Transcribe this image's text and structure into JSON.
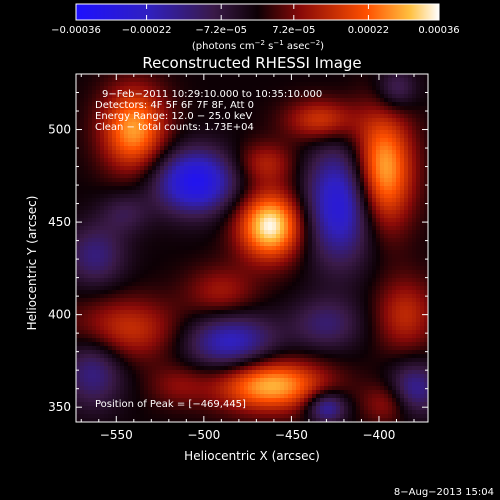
{
  "chart_data": {
    "type": "heatmap",
    "title": "Reconstructed RHESSI Image",
    "xlabel": "Heliocentric X (arcsec)",
    "ylabel": "Heliocentric Y (arcsec)",
    "xlim": [
      -573,
      -372
    ],
    "ylim": [
      342,
      530
    ],
    "xticks": [
      -550,
      -500,
      -450,
      -400
    ],
    "yticks": [
      350,
      400,
      450,
      500
    ],
    "xtick_labels": [
      "−550",
      "−500",
      "−450",
      "−400"
    ],
    "ytick_labels": [
      "350",
      "400",
      "450",
      "500"
    ],
    "colorbar": {
      "ticks": [
        -0.00036,
        -0.00022,
        -7.2e-05,
        7.2e-05,
        0.00022,
        0.00036
      ],
      "tick_labels": [
        "−0.00036",
        "−0.00022",
        "−7.2e−05",
        "7.2e−05",
        "0.00022",
        "0.00036"
      ],
      "unit_label": {
        "part1": "(photons cm",
        "exp1": "−2",
        "part2": " s",
        "exp2": "−1",
        "part3": " asec",
        "exp3": "−2",
        "part4": ")"
      },
      "range": [
        -0.00036,
        0.00036
      ]
    },
    "annotations": {
      "time_range": "9−Feb−2011 10:29:10.000 to 10:35:10.000",
      "detectors": "Detectors: 4F 5F 6F 7F 8F, Att 0",
      "energy_range": "Energy Range: 12.0 − 25.0 keV",
      "clean_counts": "Clean − total counts: 1.73E+04",
      "peak": "Position of Peak = [−469,445]"
    },
    "features": [
      {
        "x": -462,
        "y": 448,
        "sx": 13,
        "sy": 13,
        "amp": 1.0
      },
      {
        "x": -540,
        "y": 500,
        "sx": 13,
        "sy": 16,
        "amp": 0.78
      },
      {
        "x": -398,
        "y": 478,
        "sx": 12,
        "sy": 22,
        "amp": 0.88
      },
      {
        "x": -462,
        "y": 362,
        "sx": 22,
        "sy": 10,
        "amp": 0.85
      },
      {
        "x": -433,
        "y": 505,
        "sx": 14,
        "sy": 8,
        "amp": 0.5
      },
      {
        "x": -545,
        "y": 392,
        "sx": 22,
        "sy": 12,
        "amp": 0.45
      },
      {
        "x": -490,
        "y": 412,
        "sx": 14,
        "sy": 10,
        "amp": 0.32
      },
      {
        "x": -465,
        "y": 482,
        "sx": 12,
        "sy": 8,
        "amp": 0.35
      },
      {
        "x": -385,
        "y": 400,
        "sx": 12,
        "sy": 14,
        "amp": 0.4
      },
      {
        "x": -395,
        "y": 352,
        "sx": 10,
        "sy": 8,
        "amp": 0.3
      },
      {
        "x": -515,
        "y": 362,
        "sx": 12,
        "sy": 8,
        "amp": 0.22
      },
      {
        "x": -505,
        "y": 472,
        "sx": 16,
        "sy": 12,
        "amp": -0.9
      },
      {
        "x": -422,
        "y": 460,
        "sx": 14,
        "sy": 22,
        "amp": -0.8
      },
      {
        "x": -485,
        "y": 385,
        "sx": 18,
        "sy": 11,
        "amp": -0.65
      },
      {
        "x": -563,
        "y": 370,
        "sx": 12,
        "sy": 14,
        "amp": -0.45
      },
      {
        "x": -562,
        "y": 432,
        "sx": 12,
        "sy": 12,
        "amp": -0.4
      },
      {
        "x": -430,
        "y": 350,
        "sx": 8,
        "sy": 6,
        "amp": -0.6
      },
      {
        "x": -380,
        "y": 360,
        "sx": 10,
        "sy": 10,
        "amp": -0.5
      },
      {
        "x": -430,
        "y": 395,
        "sx": 14,
        "sy": 10,
        "amp": -0.35
      },
      {
        "x": -390,
        "y": 522,
        "sx": 8,
        "sy": 8,
        "amp": -0.35
      },
      {
        "x": -545,
        "y": 455,
        "sx": 10,
        "sy": 8,
        "amp": -0.25
      }
    ]
  },
  "footer": {
    "date": "8−Aug−2013 15:04"
  }
}
